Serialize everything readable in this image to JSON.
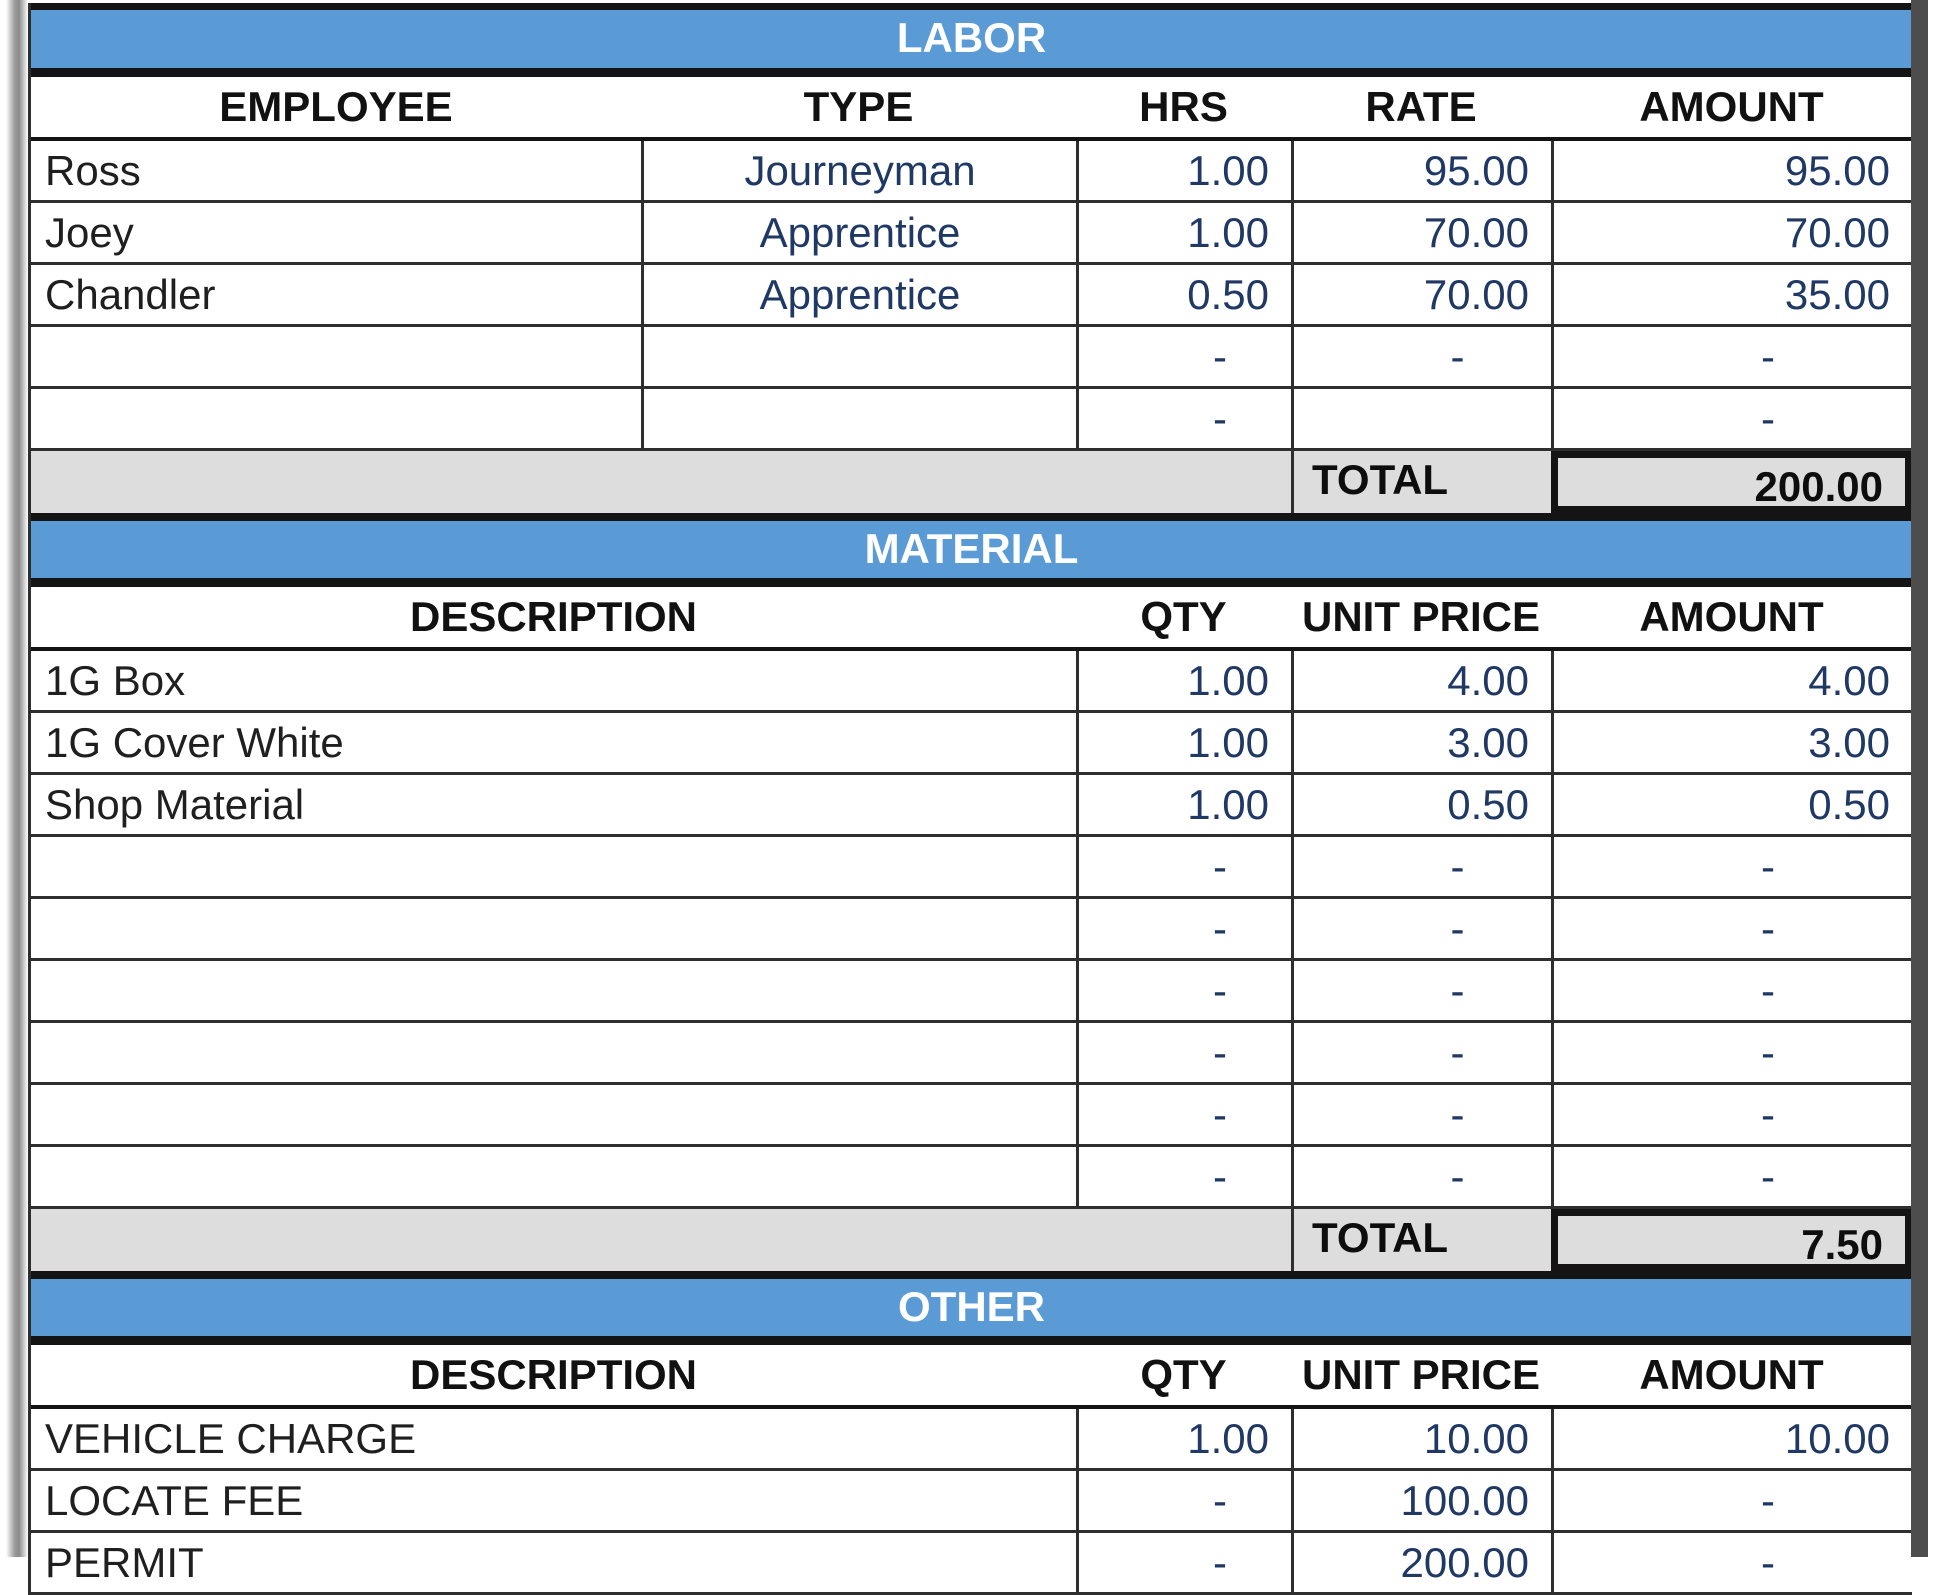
{
  "document_type": "estimate-worksheet",
  "colors": {
    "accent": "#5B9BD5",
    "section_title_text": "#FFFFFF",
    "total_row_bg": "#DDDDDD",
    "grid_line": "#2E2E2E",
    "value_text": "#1F3864",
    "label_text": "#1F1F1F"
  },
  "sections": [
    {
      "title": "LABOR",
      "columns": [
        "EMPLOYEE",
        "TYPE",
        "HRS",
        "RATE",
        "AMOUNT"
      ],
      "rows": [
        [
          "Ross",
          "Journeyman",
          "1.00",
          "95.00",
          "95.00"
        ],
        [
          "Joey",
          "Apprentice",
          "1.00",
          "70.00",
          "70.00"
        ],
        [
          "Chandler",
          "Apprentice",
          "0.50",
          "70.00",
          "35.00"
        ],
        [
          "",
          "",
          "-",
          "-",
          "-"
        ],
        [
          "",
          "",
          "-",
          "",
          "-"
        ]
      ],
      "total_label": "TOTAL",
      "total_value": "200.00"
    },
    {
      "title": "MATERIAL",
      "columns": [
        "DESCRIPTION",
        "QTY",
        "UNIT PRICE",
        "AMOUNT"
      ],
      "rows": [
        [
          "1G Box",
          "1.00",
          "4.00",
          "4.00"
        ],
        [
          "1G Cover White",
          "1.00",
          "3.00",
          "3.00"
        ],
        [
          "Shop Material",
          "1.00",
          "0.50",
          "0.50"
        ],
        [
          "",
          "-",
          "-",
          "-"
        ],
        [
          "",
          "-",
          "-",
          "-"
        ],
        [
          "",
          "-",
          "-",
          "-"
        ],
        [
          "",
          "-",
          "-",
          "-"
        ],
        [
          "",
          "-",
          "-",
          "-"
        ],
        [
          "",
          "-",
          "-",
          "-"
        ]
      ],
      "total_label": "TOTAL",
      "total_value": "7.50"
    },
    {
      "title": "OTHER",
      "columns": [
        "DESCRIPTION",
        "QTY",
        "UNIT PRICE",
        "AMOUNT"
      ],
      "rows": [
        [
          "VEHICLE CHARGE",
          "1.00",
          "10.00",
          "10.00"
        ],
        [
          "LOCATE FEE",
          "-",
          "100.00",
          "-"
        ],
        [
          "PERMIT",
          "-",
          "200.00",
          "-"
        ]
      ]
    }
  ]
}
